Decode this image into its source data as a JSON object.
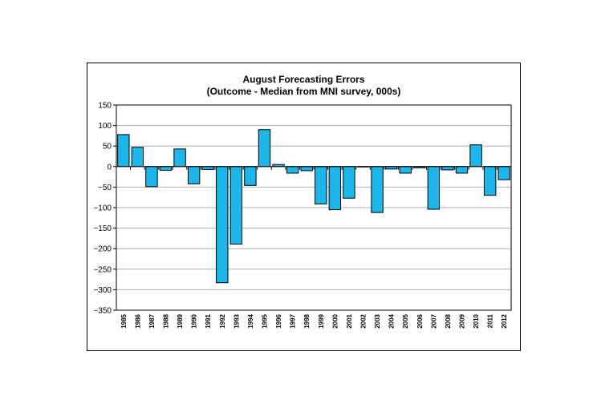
{
  "chart_data": {
    "type": "bar",
    "title": "August Forecasting Errors",
    "subtitle": "(Outcome - Median from MNI survey, 000s)",
    "xlabel": "",
    "ylabel": "",
    "ylim": [
      -350,
      150
    ],
    "yticks": [
      150,
      100,
      50,
      0,
      -50,
      -100,
      -150,
      -200,
      -250,
      -300,
      -350
    ],
    "grid": true,
    "legend": "none",
    "categories": [
      "1985",
      "1986",
      "1987",
      "1988",
      "1989",
      "1990",
      "1991",
      "1992",
      "1993",
      "1994",
      "1995",
      "1996",
      "1997",
      "1998",
      "1999",
      "2000",
      "2001",
      "2002",
      "2003",
      "2004",
      "2005",
      "2006",
      "2007",
      "2008",
      "2009",
      "2010",
      "2011",
      "2012"
    ],
    "values": [
      78,
      47,
      -49,
      -9,
      43,
      -42,
      -7,
      -283,
      -189,
      -46,
      90,
      5,
      -16,
      -10,
      -91,
      -105,
      -77,
      0,
      -112,
      -6,
      -16,
      -3,
      -104,
      -8,
      -16,
      53,
      -70,
      -32
    ]
  },
  "colors": {
    "bar_fill": "#1BB7EA",
    "bar_stroke": "#000000",
    "grid": "#B0B0B0",
    "axis": "#000000"
  }
}
